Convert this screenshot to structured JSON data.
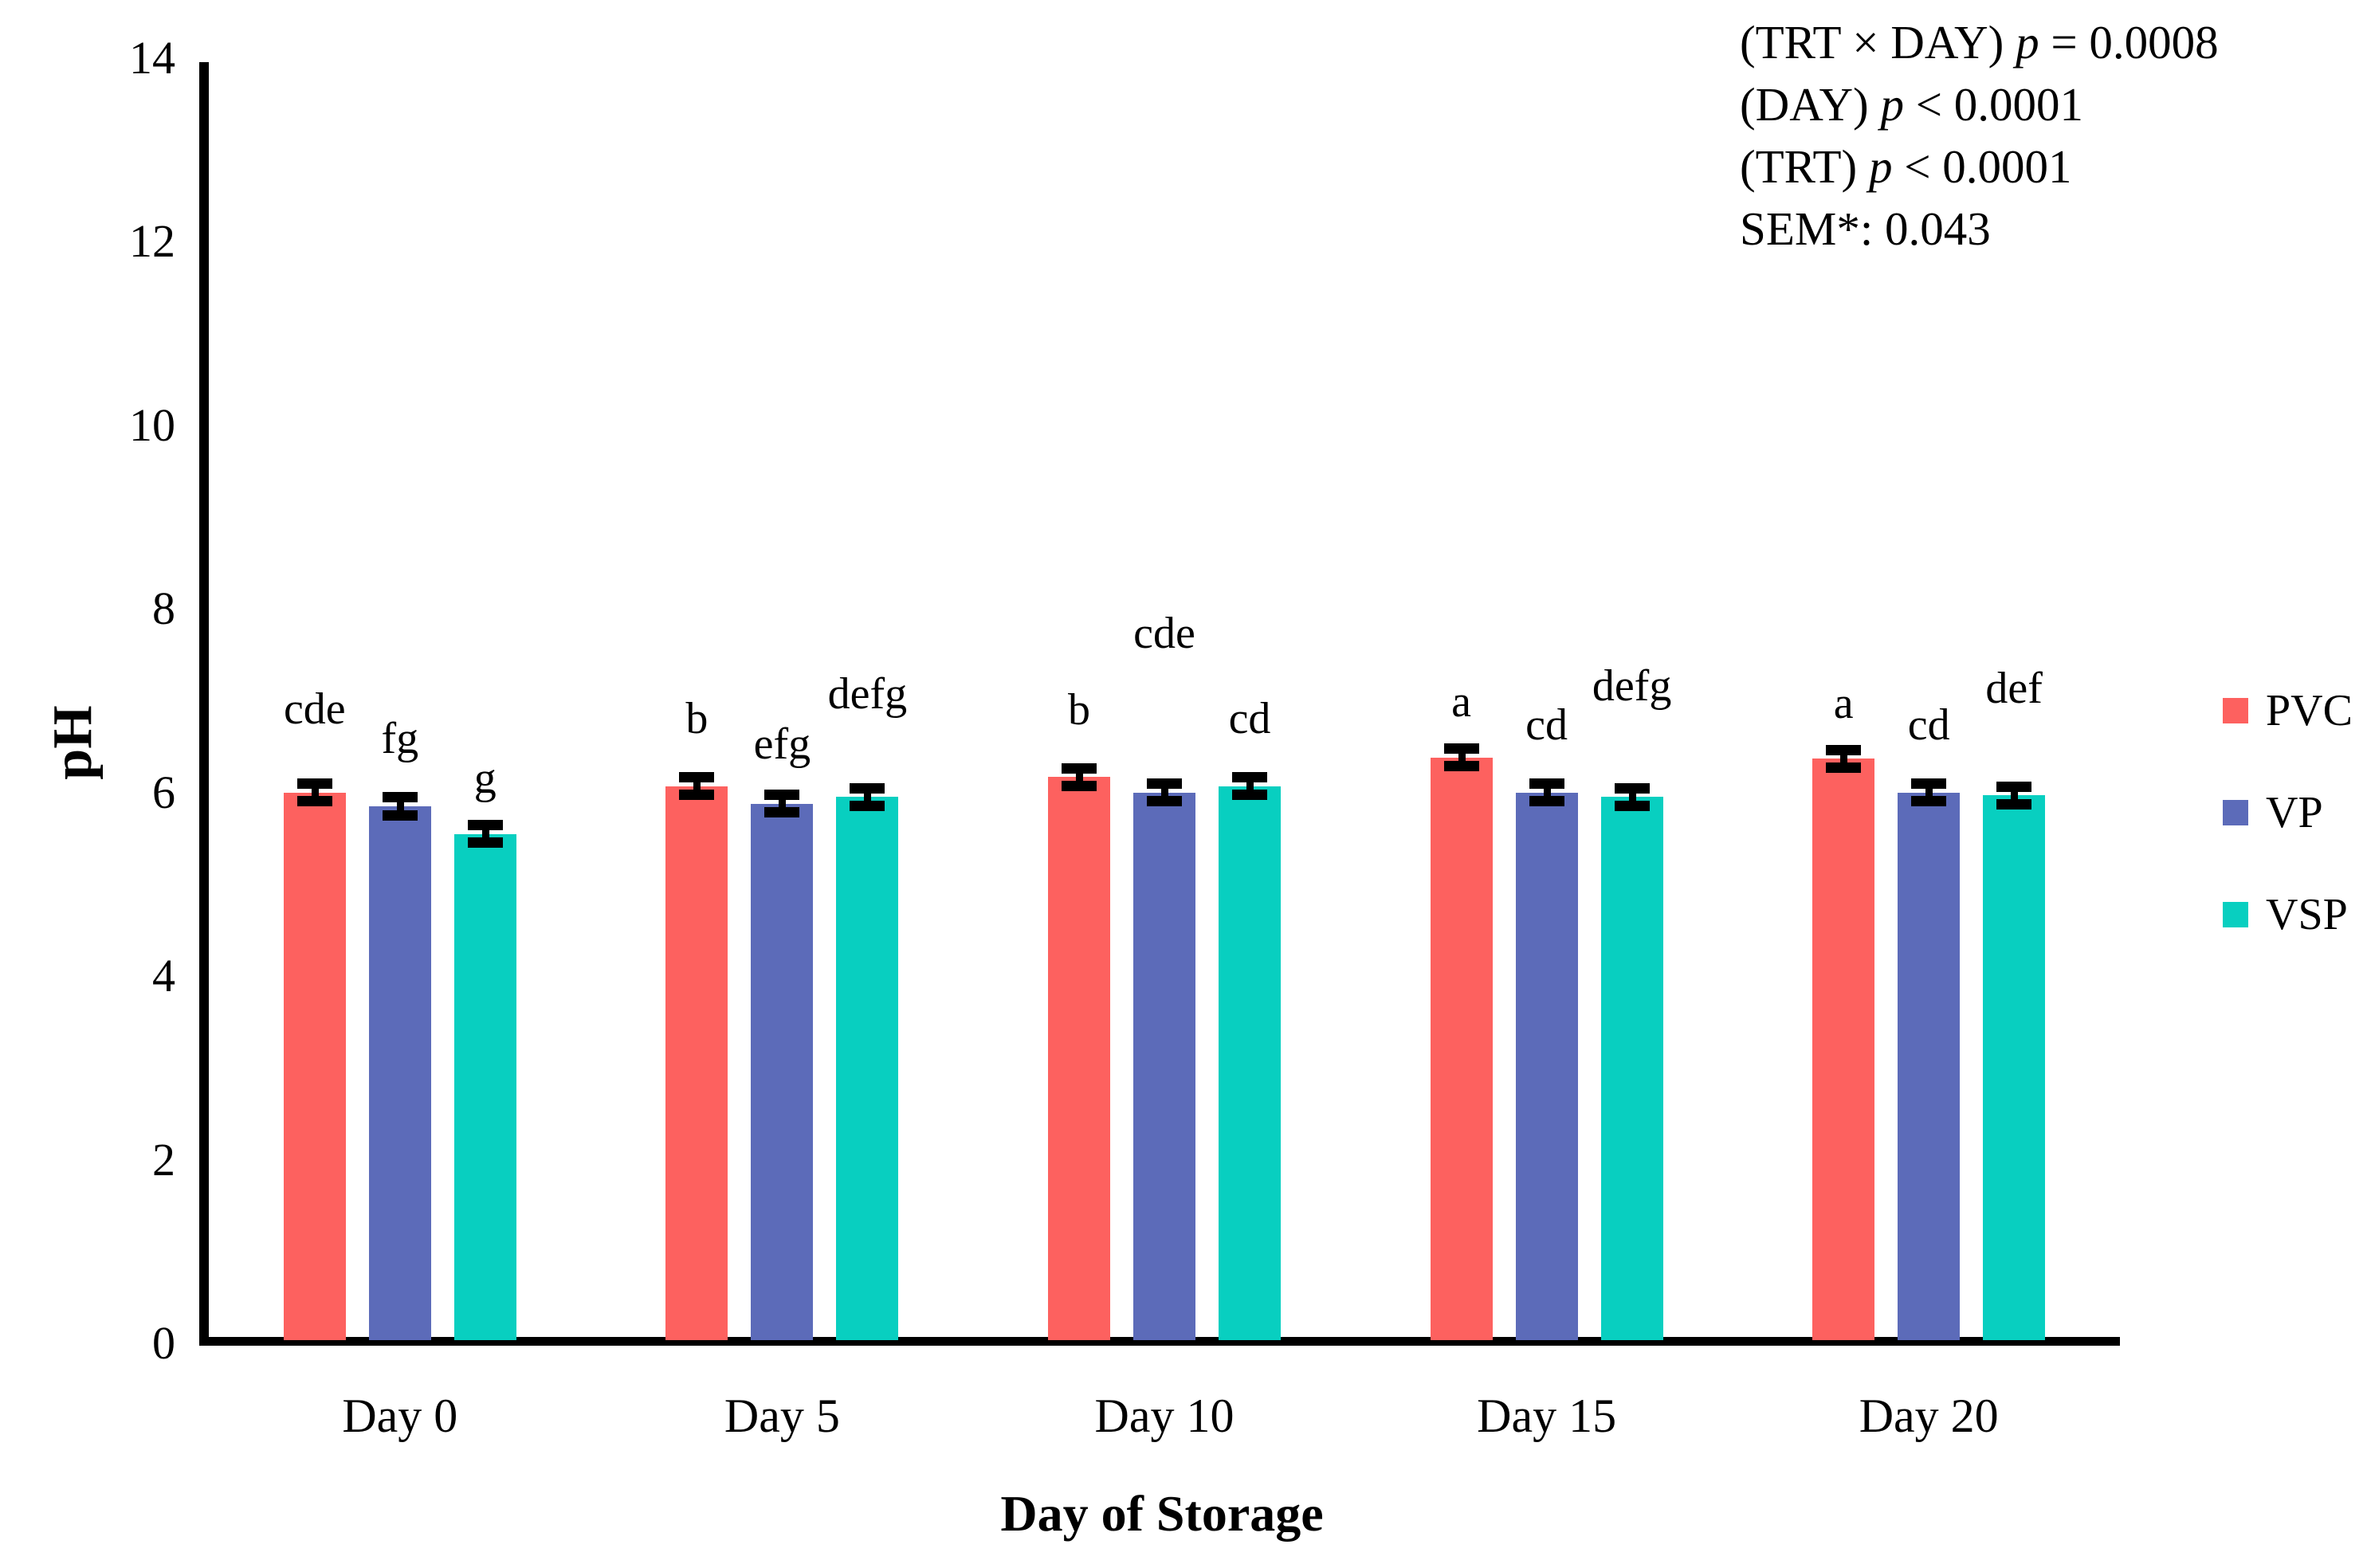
{
  "chart_data": {
    "type": "bar",
    "title": "",
    "xlabel": "Day of Storage",
    "ylabel": "pH",
    "ylim": [
      0,
      14
    ],
    "yticks": [
      0,
      2,
      4,
      6,
      8,
      10,
      12,
      14
    ],
    "grid": false,
    "legend_position": "right",
    "categories": [
      "Day 0",
      "Day 5",
      "Day 10",
      "Day 15",
      "Day 20"
    ],
    "series": [
      {
        "name": "PVC",
        "color": "#FD615F",
        "values": [
          6.0,
          6.07,
          6.17,
          6.38,
          6.37
        ],
        "errors": [
          0.1,
          0.1,
          0.1,
          0.1,
          0.1
        ],
        "letters": [
          "cde",
          "b",
          "b",
          "a",
          "a"
        ],
        "letter_gaps": [
          65,
          45,
          45,
          30,
          30
        ]
      },
      {
        "name": "VP",
        "color": "#5C6BB9",
        "values": [
          5.85,
          5.88,
          6.0,
          6.0,
          6.0
        ],
        "errors": [
          0.1,
          0.1,
          0.1,
          0.1,
          0.1
        ],
        "letters": [
          "fg",
          "efg",
          "cde",
          "cd",
          "cd"
        ],
        "letter_gaps": [
          45,
          35,
          160,
          45,
          45
        ]
      },
      {
        "name": "VSP",
        "color": "#08CFC0",
        "values": [
          5.55,
          5.95,
          6.07,
          5.95,
          5.97
        ],
        "errors": [
          0.1,
          0.1,
          0.1,
          0.1,
          0.1
        ],
        "letters": [
          "g",
          "defg",
          "cd",
          "defg",
          "def"
        ],
        "letter_gaps": [
          30,
          90,
          45,
          100,
          95
        ]
      }
    ],
    "annotations": [
      {
        "pre": "(TRT × DAY) ",
        "it": "p",
        "post": " = 0.0008"
      },
      {
        "pre": "(DAY) ",
        "it": "p",
        "post": " < 0.0001"
      },
      {
        "pre": "(TRT) ",
        "it": "p",
        "post": " < 0.0001"
      },
      {
        "pre": "SEM*: 0.043",
        "it": "",
        "post": ""
      }
    ]
  }
}
